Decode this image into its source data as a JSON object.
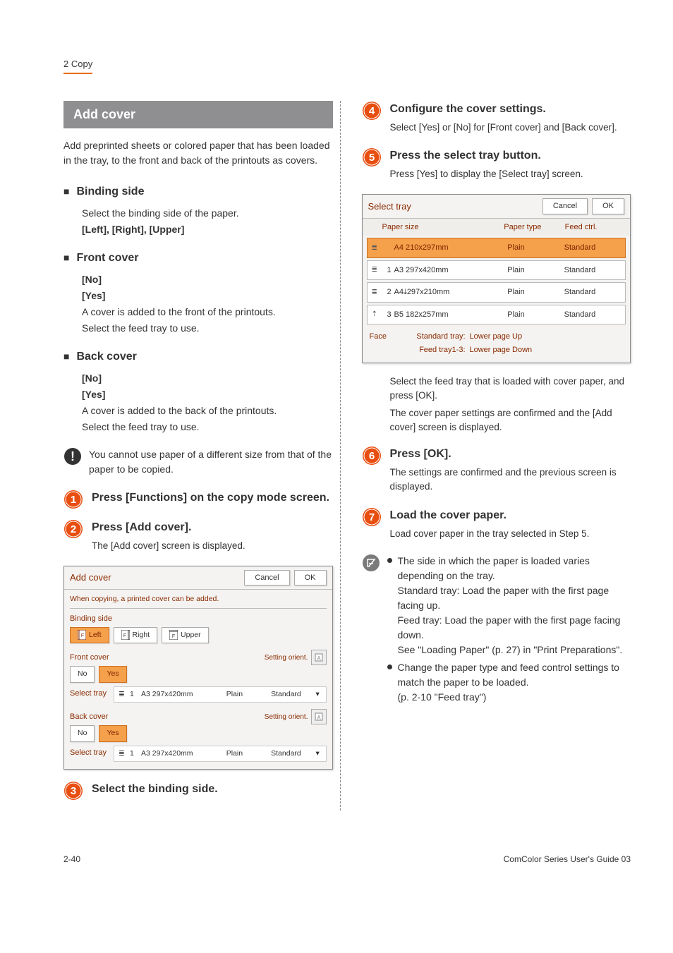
{
  "breadcrumb": "2 Copy",
  "section_title": "Add cover",
  "intro": "Add preprinted sheets or colored paper that has been loaded in the tray, to the front and back of the printouts as covers.",
  "sub": {
    "binding": {
      "title": "Binding side",
      "text": "Select the binding side of the paper.",
      "opts": "[Left], [Right], [Upper]"
    },
    "front": {
      "title": "Front cover",
      "no": "[No]",
      "yes": "[Yes]",
      "text1": "A cover is added to the front of the printouts.",
      "text2": "Select the feed tray to use."
    },
    "back": {
      "title": "Back cover",
      "no": "[No]",
      "yes": "[Yes]",
      "text1": "A cover is added to the back of the printouts.",
      "text2": "Select the feed tray to use."
    }
  },
  "caution": "You cannot use paper of a different size from that of the paper to be copied.",
  "steps": {
    "s1": {
      "title": "Press [Functions] on the copy mode screen."
    },
    "s2": {
      "title": "Press [Add cover].",
      "text": "The [Add cover] screen is displayed."
    },
    "s3": {
      "title": "Select the binding side."
    },
    "s4": {
      "title": "Configure the cover settings.",
      "text": "Select [Yes] or [No] for [Front cover] and [Back cover]."
    },
    "s5": {
      "title": "Press the select tray button.",
      "text": "Press [Yes] to display the [Select tray] screen.",
      "after1": "Select the feed tray that is loaded with cover paper, and press [OK].",
      "after2": "The cover paper settings are confirmed and the [Add cover] screen is displayed."
    },
    "s6": {
      "title": "Press [OK].",
      "text": "The settings are confirmed and the previous screen is displayed."
    },
    "s7": {
      "title": "Load the cover paper.",
      "text": "Load cover paper in the tray selected in Step 5."
    }
  },
  "tip": {
    "b1a": "The side in which the paper is loaded varies depending on the tray.",
    "b1b": "Standard tray: Load the paper with the first page facing up.",
    "b1c": "Feed tray: Load the paper with the first page facing down.",
    "b1d": "See \"Loading Paper\" (p. 27) in \"Print Preparations\".",
    "b2a": "Change the paper type and feed control settings to match the paper to be loaded.",
    "b2b": "(p. 2-10 \"Feed tray\")"
  },
  "dlg1": {
    "title": "Add cover",
    "cancel": "Cancel",
    "ok": "OK",
    "msg": "When copying, a printed cover can be added.",
    "binding_label": "Binding side",
    "left": "Left",
    "right": "Right",
    "upper": "Upper",
    "front_label": "Front cover",
    "back_label": "Back cover",
    "no": "No",
    "yes": "Yes",
    "orient_label": "Setting orient.",
    "select_tray": "Select tray",
    "tray": "A3 297x420mm",
    "plain": "Plain",
    "standard": "Standard",
    "num": "1"
  },
  "dlg2": {
    "title": "Select tray",
    "cancel": "Cancel",
    "ok": "OK",
    "h1": "Paper size",
    "h2": "Paper type",
    "h3": "Feed ctrl.",
    "rows": [
      {
        "ico": "≣",
        "n": "",
        "size": "A4 210x297mm",
        "type": "Plain",
        "feed": "Standard",
        "sel": true
      },
      {
        "ico": "≣",
        "n": "1",
        "size": "A3 297x420mm",
        "type": "Plain",
        "feed": "Standard",
        "sel": false
      },
      {
        "ico": "≣",
        "n": "2",
        "size": "A4⤓297x210mm",
        "type": "Plain",
        "feed": "Standard",
        "sel": false
      },
      {
        "ico": "⇡",
        "n": "3",
        "size": "B5 182x257mm",
        "type": "Plain",
        "feed": "Standard",
        "sel": false
      }
    ],
    "face": "Face",
    "std_label": "Standard tray:",
    "std_val": "Lower page Up",
    "ft_label": "Feed tray1-3:",
    "ft_val": "Lower page Down"
  },
  "footer": {
    "page": "2-40",
    "doc": "ComColor Series User's Guide 03"
  },
  "colors": {
    "num_fill": "#e84e10",
    "num_ring": "#ffffff"
  }
}
